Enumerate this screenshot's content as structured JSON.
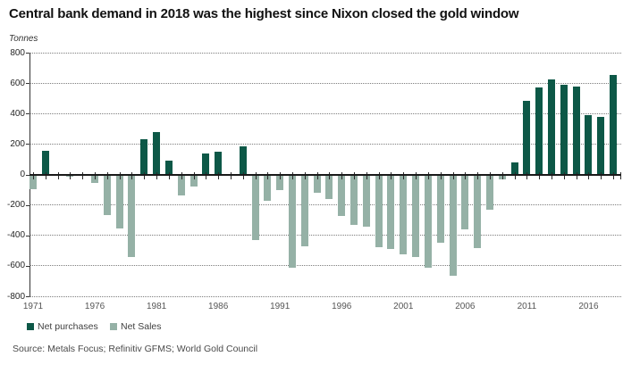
{
  "header": {
    "title": "Central bank demand in 2018 was the highest since Nixon closed the gold window",
    "axis_unit": "Tonnes"
  },
  "chart_data": {
    "type": "bar",
    "title": "Central bank demand in 2018 was the highest since Nixon closed the gold window",
    "ylabel": "Tonnes",
    "ylim": [
      -800,
      800
    ],
    "yticks": [
      800,
      600,
      400,
      200,
      0,
      -200,
      -400,
      -600,
      -800
    ],
    "xticks_labeled": [
      1971,
      1976,
      1981,
      1986,
      1991,
      1996,
      2001,
      2006,
      2011,
      2016
    ],
    "grid": "dotted-horizontal",
    "legend_position": "bottom-left",
    "positive_series": "Net purchases",
    "negative_series": "Net Sales",
    "years": [
      1971,
      1972,
      1973,
      1974,
      1975,
      1976,
      1977,
      1978,
      1979,
      1980,
      1981,
      1982,
      1983,
      1984,
      1985,
      1986,
      1987,
      1988,
      1989,
      1990,
      1991,
      1992,
      1993,
      1994,
      1995,
      1996,
      1997,
      1998,
      1999,
      2000,
      2001,
      2002,
      2003,
      2004,
      2005,
      2006,
      2007,
      2008,
      2009,
      2010,
      2011,
      2012,
      2013,
      2014,
      2015,
      2016,
      2017,
      2018
    ],
    "values": [
      -95,
      155,
      0,
      -15,
      0,
      -55,
      -265,
      -355,
      -540,
      230,
      278,
      88,
      -140,
      -80,
      135,
      147,
      -10,
      183,
      -430,
      -175,
      -105,
      -615,
      -470,
      -120,
      -160,
      -275,
      -330,
      -345,
      -475,
      -490,
      -525,
      -545,
      -615,
      -450,
      -663,
      -360,
      -485,
      -232,
      -34,
      80,
      483,
      570,
      625,
      588,
      580,
      392,
      376,
      655
    ]
  },
  "legend": {
    "net_purchases": "Net purchases",
    "net_sales": "Net Sales"
  },
  "source": "Source: Metals Focus; Refinitiv GFMS; World Gold Council",
  "colors": {
    "net_purchases": "#0d5847",
    "net_sales": "#95b1a6",
    "zero_axis": "#1a1a1a",
    "axis_line": "#333333",
    "gridline": "#7d7d7d",
    "title_text": "#111111",
    "muted_text": "#4a4a4a"
  }
}
